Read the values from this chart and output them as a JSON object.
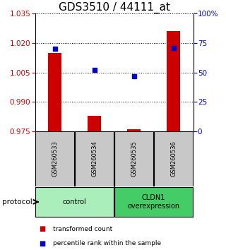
{
  "title": "GDS3510 / 44111_at",
  "samples": [
    "GSM260533",
    "GSM260534",
    "GSM260535",
    "GSM260536"
  ],
  "red_values": [
    1.015,
    0.983,
    0.9762,
    1.026
  ],
  "blue_values": [
    70,
    52,
    47,
    71
  ],
  "ylim_left": [
    0.975,
    1.035
  ],
  "yticks_left": [
    0.975,
    0.99,
    1.005,
    1.02,
    1.035
  ],
  "ylim_right": [
    0,
    100
  ],
  "yticks_right": [
    0,
    25,
    50,
    75,
    100
  ],
  "ytick_labels_right": [
    "0",
    "25",
    "50",
    "75",
    "100%"
  ],
  "bar_baseline": 0.975,
  "bar_color": "#cc0000",
  "dot_color": "#0000cc",
  "groups": [
    {
      "label": "control",
      "samples": [
        0,
        1
      ],
      "color": "#aaeebb"
    },
    {
      "label": "CLDN1\noverexpression",
      "samples": [
        2,
        3
      ],
      "color": "#44cc66"
    }
  ],
  "protocol_label": "protocol",
  "legend_items": [
    {
      "color": "#cc0000",
      "label": "transformed count"
    },
    {
      "color": "#0000cc",
      "label": "percentile rank within the sample"
    }
  ],
  "sample_box_color": "#c8c8c8",
  "title_fontsize": 11,
  "tick_fontsize": 7.5
}
